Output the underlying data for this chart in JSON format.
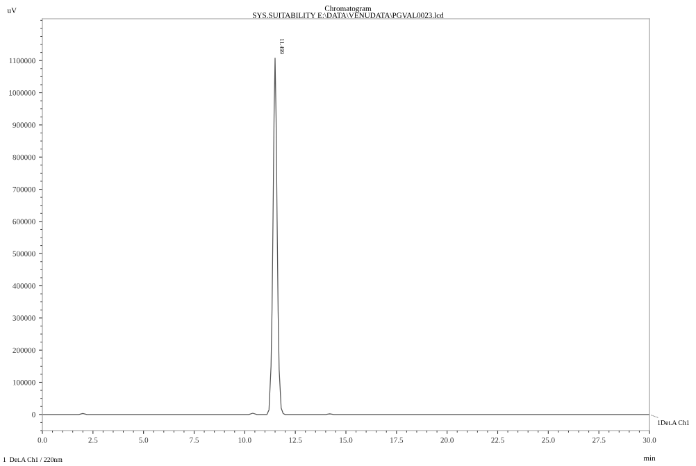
{
  "chart_data": {
    "type": "line",
    "title": "Chromatogram",
    "subtitle": "SYS.SUITABILITY E:\\DATA\\VENUDATA\\PGVAL0023.lcd",
    "xlabel": "min",
    "ylabel": "uV",
    "x": [
      0,
      1.8,
      2.0,
      2.2,
      5.0,
      7.0,
      9.0,
      10.2,
      10.4,
      10.6,
      11.1,
      11.2,
      11.3,
      11.35,
      11.4,
      11.45,
      11.499,
      11.55,
      11.6,
      11.65,
      11.7,
      11.8,
      11.9,
      12.0,
      14.0,
      14.2,
      14.4,
      20.0,
      25.0,
      30.0
    ],
    "series": [
      {
        "color": "#555555",
        "values": [
          0,
          0,
          3000,
          0,
          0,
          0,
          0,
          0,
          4000,
          0,
          0,
          15000,
          150000,
          330000,
          620000,
          930000,
          1108000,
          920000,
          600000,
          320000,
          140000,
          20000,
          3000,
          0,
          0,
          2000,
          0,
          0,
          0,
          0
        ]
      }
    ],
    "xlim": [
      0,
      30
    ],
    "ylim": [
      -50000,
      1230000
    ],
    "xticks": [
      {
        "value": 0,
        "label": "0.0"
      },
      {
        "value": 2.5,
        "label": "2.5"
      },
      {
        "value": 5,
        "label": "5.0"
      },
      {
        "value": 7.5,
        "label": "7.5"
      },
      {
        "value": 10,
        "label": "10.0"
      },
      {
        "value": 12.5,
        "label": "12.5"
      },
      {
        "value": 15,
        "label": "15.0"
      },
      {
        "value": 17.5,
        "label": "17.5"
      },
      {
        "value": 20,
        "label": "20.0"
      },
      {
        "value": 22.5,
        "label": "22.5"
      },
      {
        "value": 25,
        "label": "25.0"
      },
      {
        "value": 27.5,
        "label": "27.5"
      },
      {
        "value": 30,
        "label": "30.0"
      }
    ],
    "yticks": [
      0,
      100000,
      200000,
      300000,
      400000,
      500000,
      600000,
      700000,
      800000,
      900000,
      1000000,
      1100000
    ],
    "annotations": [
      {
        "text": "11.499",
        "x": 11.499,
        "y": 1108000
      },
      {
        "text": "1Det.A Ch1",
        "x": 30,
        "y": 0
      },
      "1  Det.A Ch1 / 220nm"
    ],
    "grid": false,
    "legend": false
  }
}
